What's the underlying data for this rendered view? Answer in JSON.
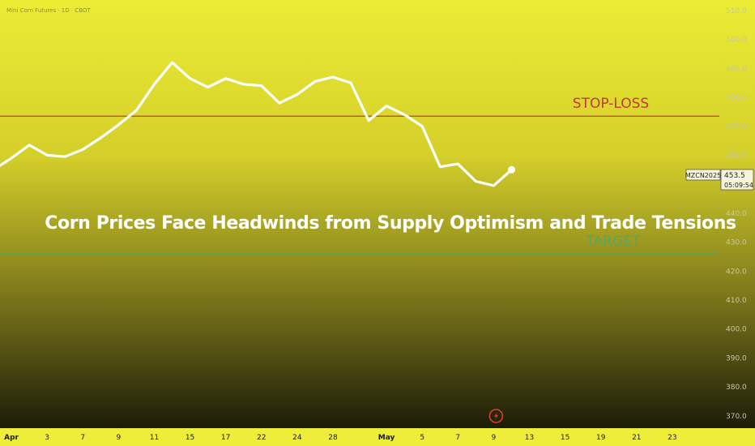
{
  "symbol_title": "Mini Corn Futures · 1D · CBOT",
  "headline": "Corn Prices Face Headwinds from Supply Optimism and Trade Tensions",
  "price_badge": {
    "symbol": "MZCN2025",
    "price": "453.5",
    "countdown": "05:09:54"
  },
  "colors": {
    "stop": "#c03a3a",
    "target": "#5aa85a",
    "line": "#ffffff"
  },
  "icons": {
    "event": "lightning-event-icon"
  },
  "chart_data": {
    "type": "line",
    "title": "",
    "xlabel": "",
    "ylabel": "",
    "ylim": [
      368,
      508
    ],
    "y_ticks": [
      "370.0",
      "380.0",
      "390.0",
      "400.0",
      "410.0",
      "420.0",
      "430.0",
      "440.0",
      "450.0",
      "460.0",
      "470.0",
      "480.0",
      "490.0",
      "500.0",
      "510.0"
    ],
    "x_ticks": [
      {
        "label": "Apr",
        "i": 1,
        "bold": true
      },
      {
        "label": "3",
        "i": 3
      },
      {
        "label": "7",
        "i": 5
      },
      {
        "label": "9",
        "i": 7
      },
      {
        "label": "11",
        "i": 9
      },
      {
        "label": "15",
        "i": 11
      },
      {
        "label": "17",
        "i": 13
      },
      {
        "label": "22",
        "i": 15
      },
      {
        "label": "24",
        "i": 17
      },
      {
        "label": "28",
        "i": 19
      },
      {
        "label": "May",
        "i": 22,
        "bold": true
      },
      {
        "label": "5",
        "i": 24
      },
      {
        "label": "7",
        "i": 26
      },
      {
        "label": "9",
        "i": 28
      },
      {
        "label": "13",
        "i": 30
      },
      {
        "label": "15",
        "i": 32
      },
      {
        "label": "19",
        "i": 34
      },
      {
        "label": "21",
        "i": 36
      },
      {
        "label": "23",
        "i": 38
      }
    ],
    "series": [
      {
        "values": [
          455.0,
          459.0,
          463.5,
          460.0,
          459.5,
          462.0,
          466.0,
          470.5,
          475.5,
          484.5,
          492.0,
          486.5,
          483.5,
          486.5,
          484.5,
          484.0,
          478.0,
          481.0,
          485.5,
          487.0,
          485.0,
          472.0,
          477.0,
          474.0,
          470.0,
          456.0,
          457.0,
          451.0,
          449.5,
          455.0
        ]
      }
    ],
    "levels": [
      {
        "label": "STOP-LOSS",
        "value": 473.5
      },
      {
        "label": "TARGET",
        "value": 426.0
      }
    ],
    "event_marker_i": 28
  }
}
